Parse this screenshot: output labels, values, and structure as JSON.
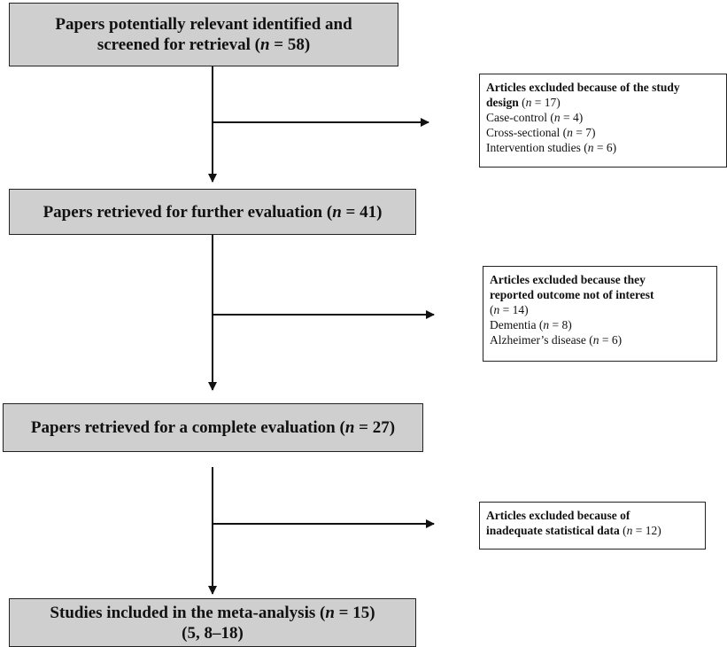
{
  "boxes": [
    {
      "lines": [
        [
          "Papers potentially relevant identified and"
        ],
        [
          "screened for retrieval (",
          "n",
          " = 58)"
        ]
      ]
    },
    {
      "lines": [
        [
          "Papers retrieved for further evaluation (",
          "n",
          " = 41)"
        ]
      ]
    },
    {
      "lines": [
        [
          "Papers retrieved for a complete evaluation (",
          "n",
          " = 27)"
        ]
      ]
    },
    {
      "lines": [
        [
          "Studies included in the meta-analysis (",
          "n",
          " = 15)"
        ],
        [
          "(5, 8–18)"
        ]
      ]
    }
  ],
  "exclusions": [
    {
      "lines": [
        [
          "Articles excluded because of the study"
        ],
        [
          "design",
          " (",
          "n",
          " = 17)"
        ],
        [
          "Case-control (",
          "n",
          " = 4)"
        ],
        [
          "Cross-sectional (",
          "n",
          " = 7)"
        ],
        [
          "Intervention studies (",
          "n",
          " = 6)"
        ]
      ]
    },
    {
      "lines": [
        [
          "Articles excluded because they"
        ],
        [
          "reported outcome not of interest"
        ],
        [
          "(",
          "n",
          " = 14)"
        ],
        [
          "Dementia (",
          "n",
          " = 8)"
        ],
        [
          "Alzheimer’s disease (",
          "n",
          " = 6)"
        ]
      ]
    },
    {
      "lines": [
        [
          "Articles excluded because of"
        ],
        [
          "inadequate statistical data",
          " (",
          "n",
          " = 12)"
        ]
      ]
    }
  ]
}
